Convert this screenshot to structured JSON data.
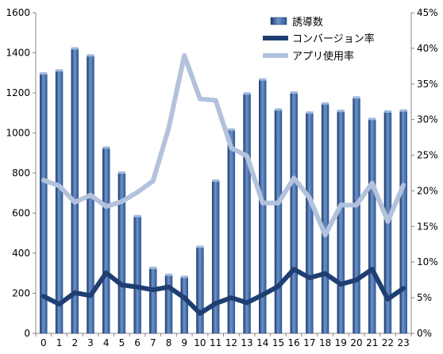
{
  "chart_data": {
    "type": "bar",
    "categories": [
      "0",
      "1",
      "2",
      "3",
      "4",
      "5",
      "6",
      "7",
      "8",
      "9",
      "10",
      "11",
      "12",
      "13",
      "14",
      "15",
      "16",
      "17",
      "18",
      "19",
      "20",
      "21",
      "22",
      "23"
    ],
    "series": [
      {
        "name": "誘導数",
        "type": "bar",
        "axis": "left",
        "values": [
          1295,
          1310,
          1420,
          1385,
          925,
          800,
          583,
          325,
          290,
          280,
          430,
          760,
          1015,
          1195,
          1265,
          1115,
          1200,
          1100,
          1145,
          1108,
          1175,
          1068,
          1105,
          1110
        ]
      },
      {
        "name": "コンバージョン率",
        "type": "line",
        "axis": "right",
        "values": [
          5.2,
          4.1,
          5.7,
          5.3,
          8.5,
          6.8,
          6.5,
          6.1,
          6.5,
          5.0,
          2.8,
          4.2,
          5.0,
          4.3,
          5.4,
          6.6,
          9.0,
          7.8,
          8.4,
          6.9,
          7.5,
          9.0,
          4.8,
          6.3
        ]
      },
      {
        "name": "アプリ使用率",
        "type": "line",
        "axis": "right",
        "values": [
          21.5,
          20.7,
          18.4,
          19.4,
          17.8,
          18.5,
          19.8,
          21.4,
          28.8,
          39.0,
          32.9,
          32.7,
          26.0,
          24.9,
          18.3,
          18.3,
          21.8,
          19.0,
          13.8,
          18.0,
          18.0,
          21.1,
          15.7,
          20.8
        ]
      }
    ],
    "y_left": {
      "min": 0,
      "max": 1600,
      "ticks": [
        "0",
        "200",
        "400",
        "600",
        "800",
        "1000",
        "1200",
        "1400",
        "1600"
      ]
    },
    "y_right": {
      "min": 0,
      "max": 45,
      "ticks": [
        "0%",
        "5%",
        "10%",
        "15%",
        "20%",
        "25%",
        "30%",
        "35%",
        "40%",
        "45%"
      ]
    },
    "legend_position": "top-right",
    "grid": false,
    "colors": {
      "bar_light": "#6f93c7",
      "bar_mid": "#2e5b9c",
      "bar_dark": "#1a3a6e",
      "conversion_line": "#1f3f73",
      "app_line": "#b3c2dc",
      "axis": "#888888"
    }
  }
}
